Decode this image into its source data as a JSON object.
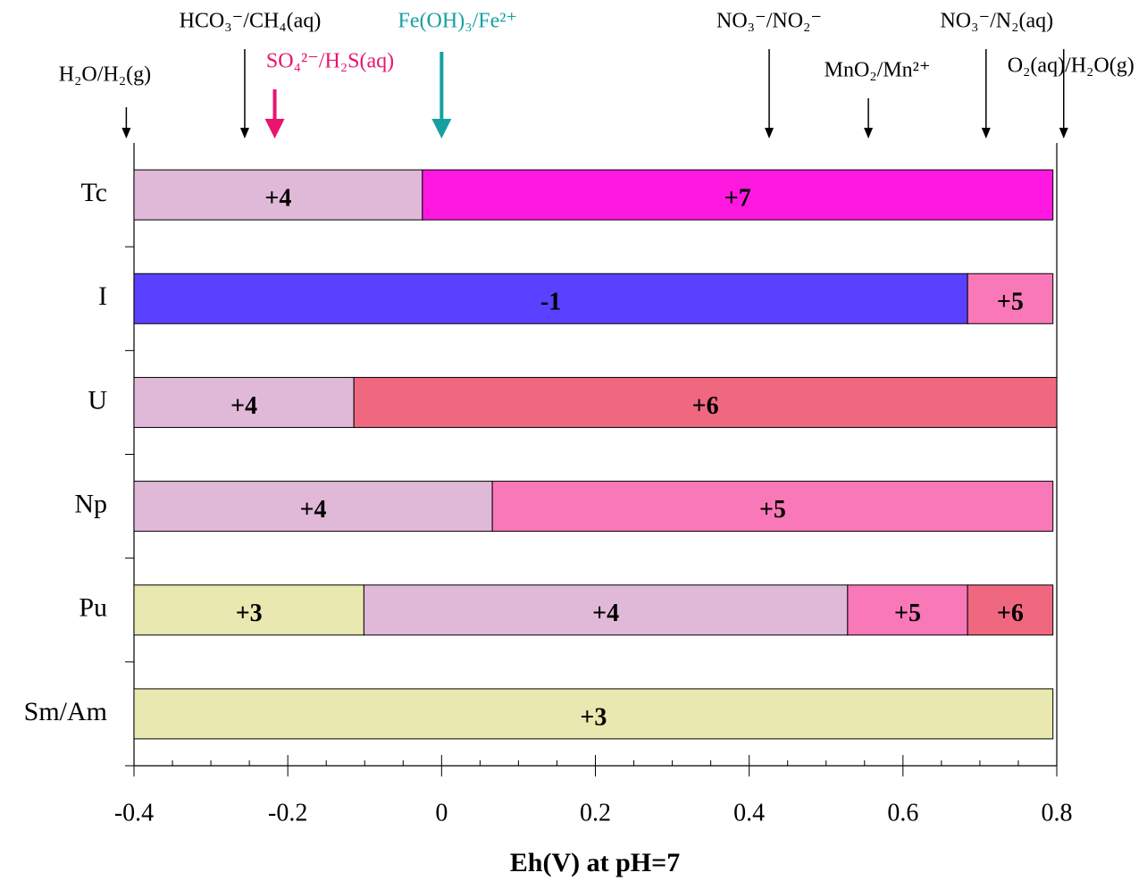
{
  "chart_data": {
    "type": "range-bar",
    "x_label": "Eh(V) at pH=7",
    "xlim": [
      -0.4,
      0.8
    ],
    "xticks": [
      -0.4,
      -0.2,
      0,
      0.2,
      0.4,
      0.6,
      0.8
    ],
    "xminorticks": [
      -0.35,
      -0.3,
      -0.25,
      -0.15,
      -0.1,
      -0.05,
      0.05,
      0.1,
      0.15,
      0.25,
      0.3,
      0.35,
      0.45,
      0.5,
      0.55,
      0.65,
      0.7,
      0.75
    ],
    "categories": [
      "Tc",
      "I",
      "U",
      "Np",
      "Pu",
      "Sm/Am"
    ],
    "rows": [
      {
        "segments": [
          {
            "label": "+4",
            "from": -0.4,
            "to": -0.025,
            "color": "#e0b8d8"
          },
          {
            "label": "+7",
            "from": -0.025,
            "to": 0.795,
            "color": "#ff18e0"
          }
        ]
      },
      {
        "segments": [
          {
            "label": "-1",
            "from": -0.4,
            "to": 0.684,
            "color": "#5a40ff"
          },
          {
            "label": "+5",
            "from": 0.684,
            "to": 0.795,
            "color": "#f878b8"
          }
        ]
      },
      {
        "segments": [
          {
            "label": "+4",
            "from": -0.4,
            "to": -0.114,
            "color": "#e0b8d8"
          },
          {
            "label": "+6",
            "from": -0.114,
            "to": 0.8,
            "color": "#f06880"
          }
        ]
      },
      {
        "segments": [
          {
            "label": "+4",
            "from": -0.4,
            "to": 0.066,
            "color": "#e0b8d8"
          },
          {
            "label": "+5",
            "from": 0.066,
            "to": 0.795,
            "color": "#f878b8"
          }
        ]
      },
      {
        "segments": [
          {
            "label": "+3",
            "from": -0.4,
            "to": -0.101,
            "color": "#e8e8b0"
          },
          {
            "label": "+4",
            "from": -0.101,
            "to": 0.528,
            "color": "#e0b8d8"
          },
          {
            "label": "+5",
            "from": 0.528,
            "to": 0.684,
            "color": "#f878b8"
          },
          {
            "label": "+6",
            "from": 0.684,
            "to": 0.795,
            "color": "#f06880"
          }
        ]
      },
      {
        "segments": [
          {
            "label": "+3",
            "from": -0.4,
            "to": 0.795,
            "color": "#e8e8b0"
          }
        ]
      }
    ],
    "couples": [
      {
        "label": "H₂O/H₂(g)",
        "x": -0.41,
        "color": "#000000"
      },
      {
        "label": "HCO₃⁻/CH₄(aq)",
        "x": -0.256,
        "color": "#000000"
      },
      {
        "label": "SO₄²⁻/H₂S(aq)",
        "x": -0.217,
        "color": "#e8146e"
      },
      {
        "label": "Fe(OH)₃/Fe²⁺",
        "x": 0,
        "color": "#16a0a0"
      },
      {
        "label": "NO₃⁻/NO₂⁻",
        "x": 0.426,
        "color": "#000000"
      },
      {
        "label": "MnO₂/Mn²⁺",
        "x": 0.555,
        "color": "#000000"
      },
      {
        "label": "NO₃⁻/N₂(aq)",
        "x": 0.708,
        "color": "#000000"
      },
      {
        "label": "O₂(aq)/H₂O(g)",
        "x": 0.809,
        "color": "#000000"
      }
    ]
  }
}
